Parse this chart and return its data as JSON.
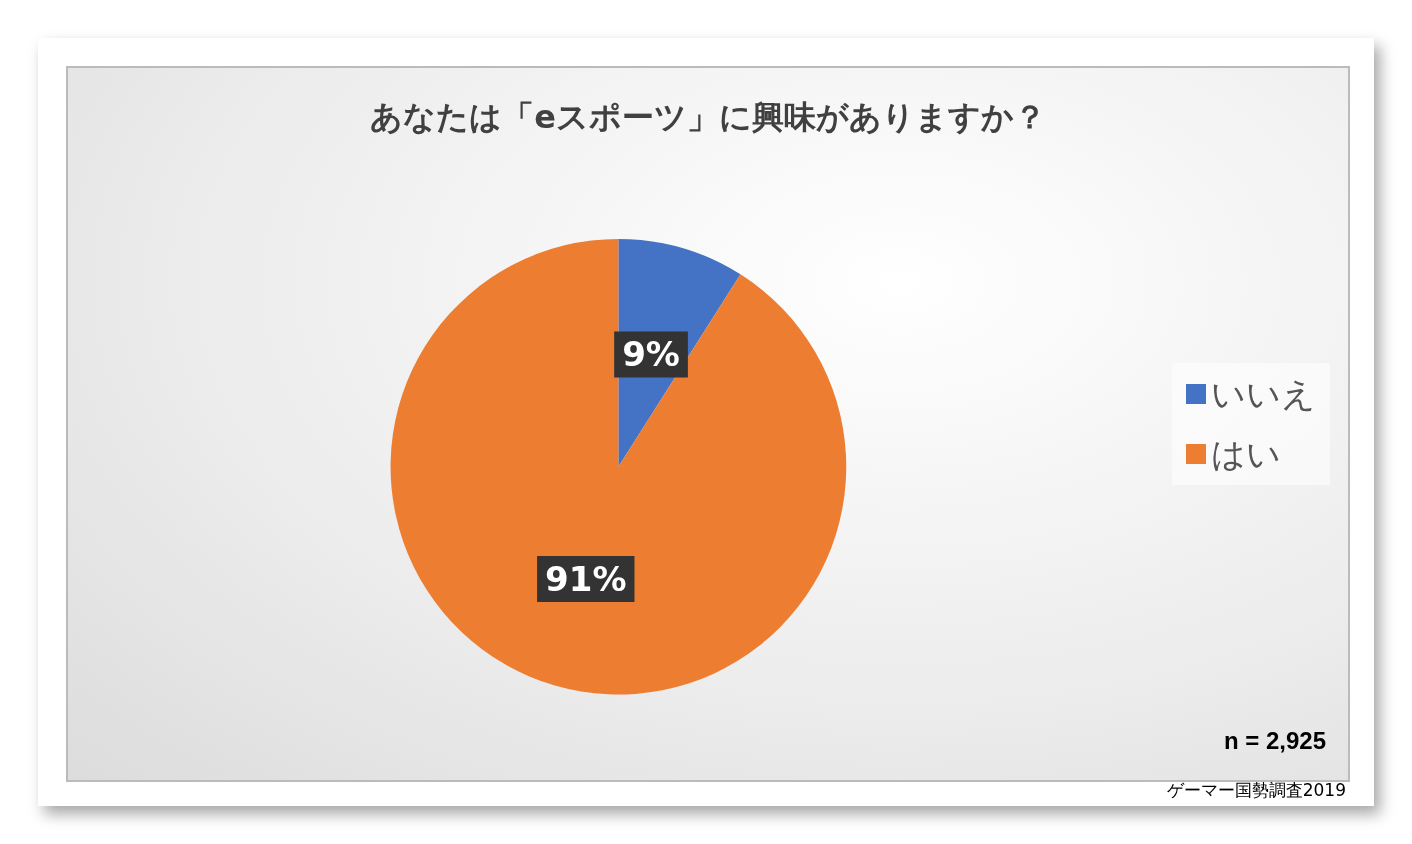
{
  "chart_data": {
    "type": "pie",
    "title": "あなたは「eスポーツ」に興味がありますか？",
    "categories": [
      "いいえ",
      "はい"
    ],
    "values": [
      9,
      91
    ],
    "colors": [
      "#4472c4",
      "#ed7d31"
    ],
    "value_labels": [
      "9%",
      "91%"
    ],
    "legend": "right",
    "annotations": [
      "n = 2,925",
      "ゲーマー国勢調査2019"
    ]
  }
}
